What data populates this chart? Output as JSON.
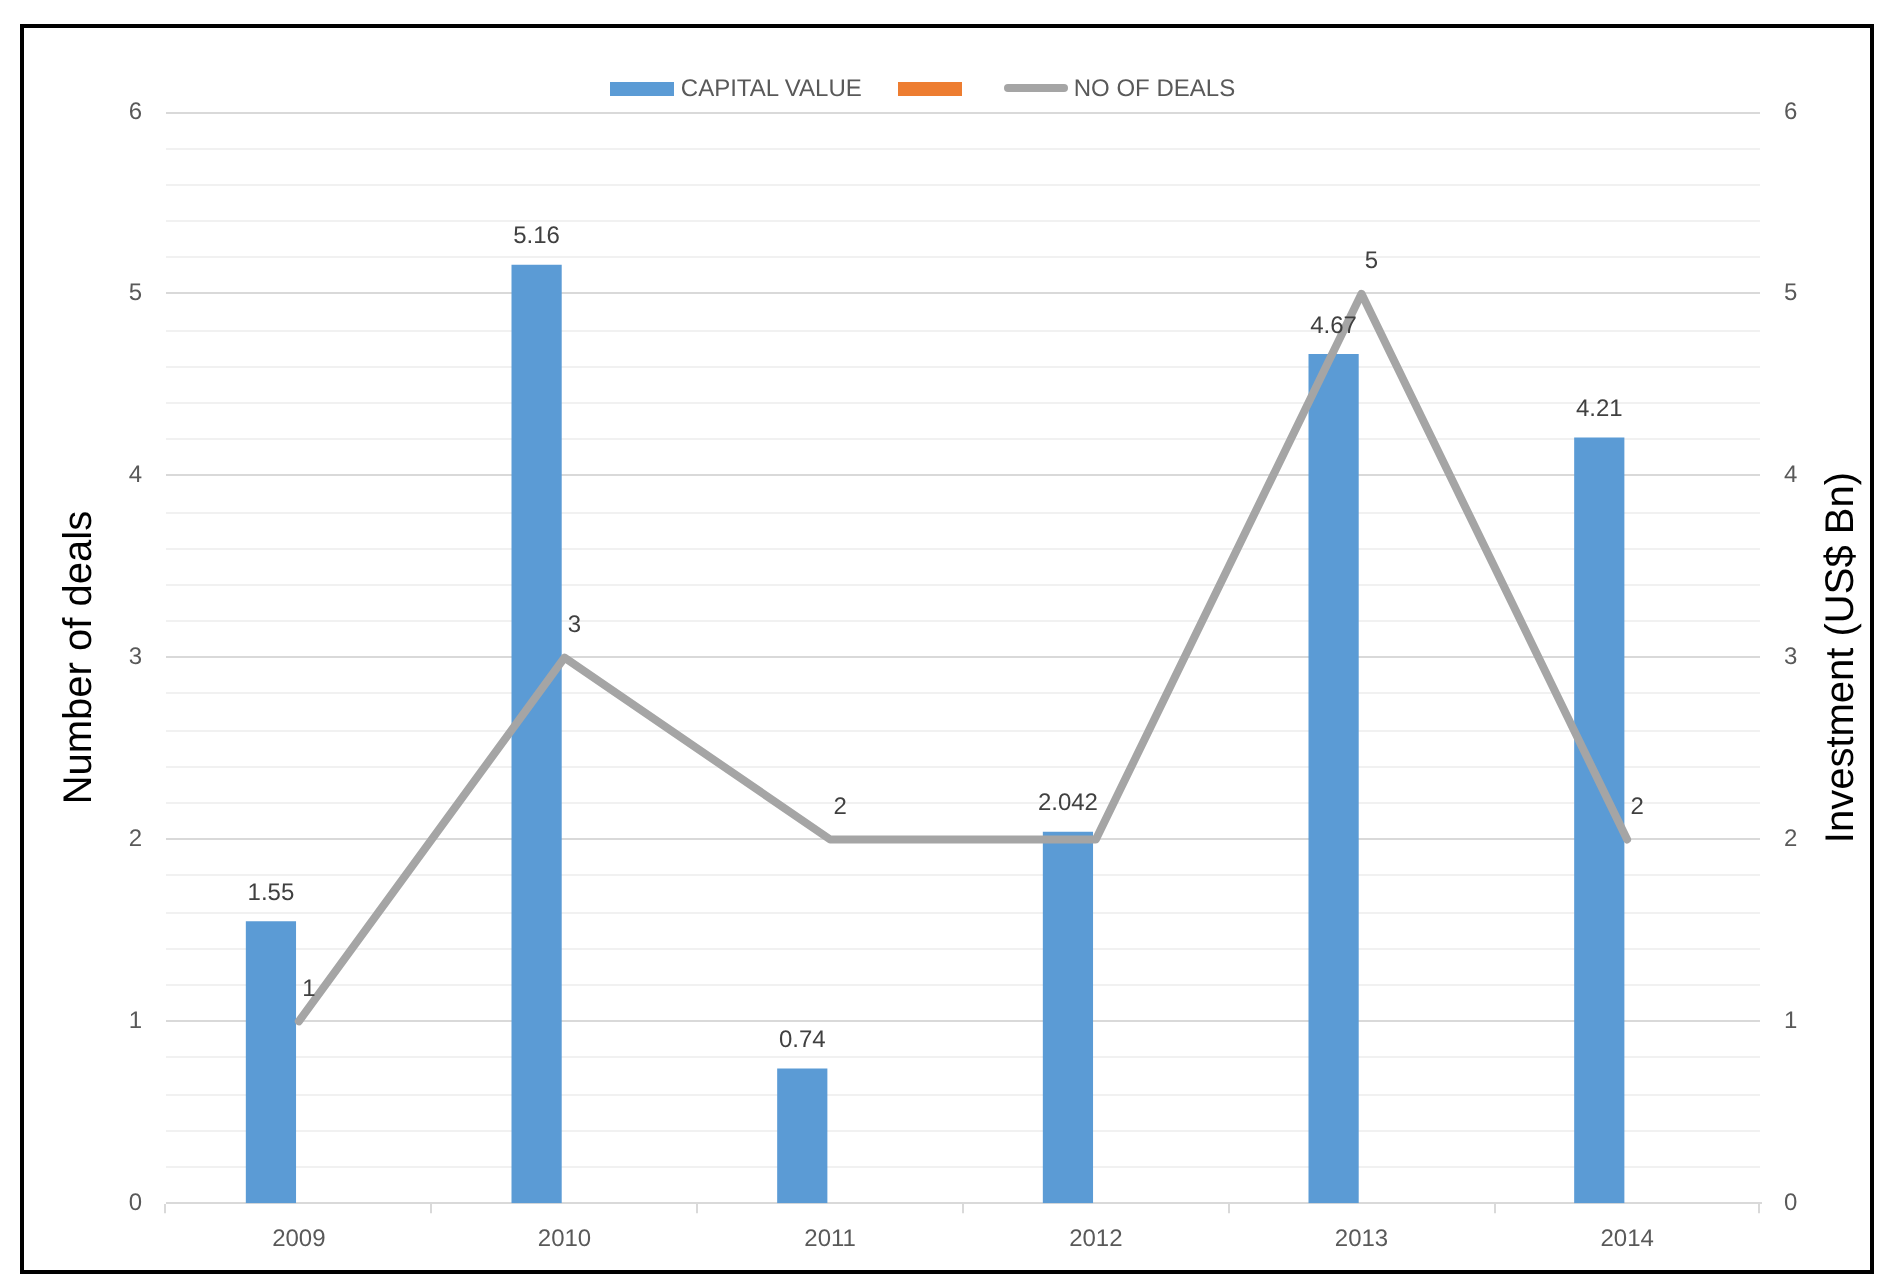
{
  "chart_data": {
    "type": "bar",
    "ylabel": "Number of deals",
    "y2label": "Investment (US$ Bn)",
    "categories": [
      "2009",
      "2010",
      "2011",
      "2012",
      "2013",
      "2014"
    ],
    "series": [
      {
        "name": "CAPITAL VALUE",
        "axis": "y2",
        "color": "#5b9bd5",
        "values": [
          1.55,
          5.16,
          0.74,
          2.042,
          4.67,
          4.21
        ],
        "value_labels": [
          "1.55",
          "5.16",
          "0.74",
          "2.042",
          "4.67",
          "4.21"
        ]
      },
      {
        "axis": "y2",
        "color": "#ed7d31",
        "values": [
          null,
          null,
          null,
          null,
          null,
          null
        ]
      },
      {
        "name": "NO OF DEALS",
        "type": "line",
        "color": "#a5a5a5",
        "values": [
          1,
          3,
          2,
          2,
          5,
          2
        ],
        "value_labels": [
          "1",
          "3",
          "2",
          null,
          "5",
          "2"
        ]
      }
    ],
    "ylim": [
      0,
      6
    ],
    "yticks": [
      0,
      {
        "value": 0.2,
        "label": null
      },
      {
        "value": 0.4,
        "label": null
      },
      {
        "value": 0.6,
        "label": null
      },
      {
        "value": 0.8,
        "label": null
      },
      1,
      {
        "value": 1.2,
        "label": null
      },
      {
        "value": 1.4,
        "label": null
      },
      {
        "value": 1.6,
        "label": null
      },
      {
        "value": 1.8,
        "label": null
      },
      2,
      {
        "value": 2.2,
        "label": null
      },
      {
        "value": 2.4,
        "label": null
      },
      {
        "value": 2.6,
        "label": null
      },
      {
        "value": 2.8,
        "label": null
      },
      3,
      {
        "value": 3.2,
        "label": null
      },
      {
        "value": 3.4,
        "label": null
      },
      {
        "value": 3.6,
        "label": null
      },
      {
        "value": 3.8,
        "label": null
      },
      4,
      {
        "value": 4.2,
        "label": null
      },
      {
        "value": 4.4,
        "label": null
      },
      {
        "value": 4.6,
        "label": null
      },
      {
        "value": 4.8,
        "label": null
      },
      5,
      {
        "value": 5.2,
        "label": null
      },
      {
        "value": 5.4,
        "label": null
      },
      {
        "value": 5.6,
        "label": null
      },
      {
        "value": 5.8,
        "label": null
      },
      6
    ],
    "y2lim": [
      0,
      6
    ],
    "y2ticks": [
      0,
      1,
      2,
      3,
      4,
      5,
      6
    ],
    "grid": "y",
    "legend": "top",
    "marker": "none",
    "line_style": "solid"
  }
}
